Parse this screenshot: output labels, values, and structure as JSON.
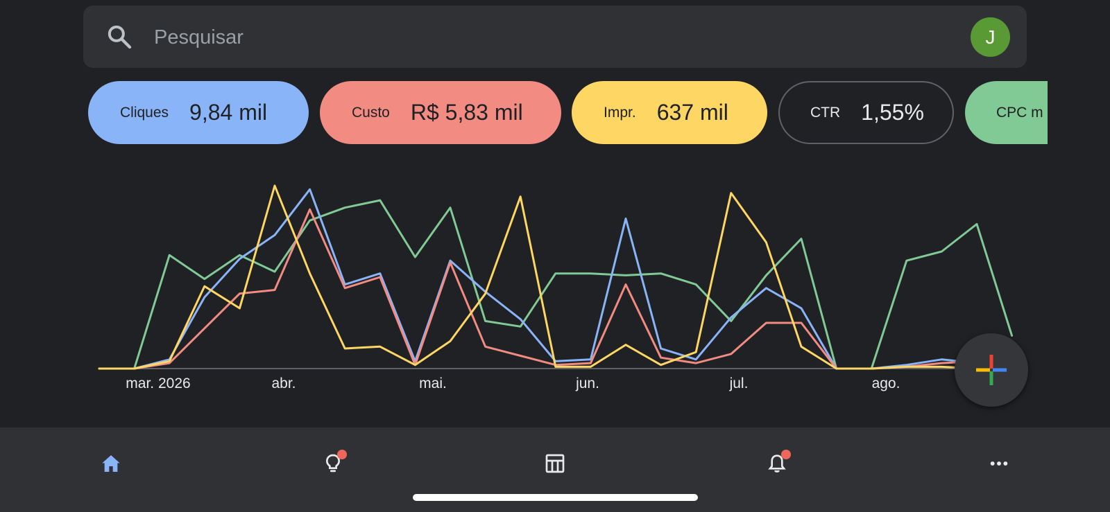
{
  "search": {
    "placeholder": "Pesquisar",
    "avatar_initial": "J",
    "avatar_color": "#5a9a35"
  },
  "metrics": [
    {
      "label": "Cliques",
      "value": "9,84 mil",
      "color": "#8ab4f8",
      "selected": true
    },
    {
      "label": "Custo",
      "value": "R$ 5,83 mil",
      "color": "#f28b82",
      "selected": true
    },
    {
      "label": "Impr.",
      "value": "637 mil",
      "color": "#fdd663",
      "selected": true
    },
    {
      "label": "CTR",
      "value": "1,55%",
      "color": "",
      "selected": false
    },
    {
      "label": "CPC m",
      "value": "",
      "color": "#81c995",
      "selected": true
    }
  ],
  "chart_data": {
    "type": "line",
    "x_tick_labels": [
      "mar. 2026",
      "abr.",
      "mai.",
      "jun.",
      "jul.",
      "ago."
    ],
    "grid": false,
    "legend": "none",
    "series": [
      {
        "color": "#81c995",
        "values": [
          0,
          0,
          62,
          49,
          62,
          53,
          81,
          88,
          92,
          61,
          88,
          26,
          23,
          52,
          52,
          51,
          52,
          46,
          26,
          51,
          71,
          0,
          0,
          59,
          64,
          79,
          18
        ]
      },
      {
        "color": "#8ab4f8",
        "values": [
          0,
          0,
          5,
          39,
          60,
          73,
          98,
          46,
          52,
          4,
          59,
          42,
          27,
          4,
          5,
          82,
          11,
          5,
          28,
          44,
          33,
          0,
          0,
          2,
          5,
          3,
          1
        ]
      },
      {
        "color": "#f28b82",
        "values": [
          0,
          0,
          3,
          22,
          41,
          43,
          87,
          44,
          50,
          2,
          58,
          12,
          7,
          2,
          3,
          46,
          6,
          3,
          8,
          25,
          25,
          0,
          0,
          1,
          3,
          4,
          0
        ]
      },
      {
        "color": "#fdd663",
        "values": [
          0,
          0,
          4,
          45,
          33,
          100,
          52,
          11,
          12,
          2,
          15,
          41,
          94,
          1,
          1,
          13,
          2,
          9,
          96,
          69,
          12,
          0,
          0,
          1,
          1,
          0,
          0
        ]
      }
    ]
  },
  "fab": {
    "icon": "plus-icon",
    "colors": [
      "#ea4335",
      "#4285f4",
      "#34a853",
      "#fbbc04"
    ]
  },
  "nav": {
    "items": [
      {
        "icon": "home-icon",
        "active": true,
        "badge": false
      },
      {
        "icon": "lightbulb-icon",
        "active": false,
        "badge": true
      },
      {
        "icon": "table-icon",
        "active": false,
        "badge": false
      },
      {
        "icon": "bell-icon",
        "active": false,
        "badge": true
      },
      {
        "icon": "more-icon",
        "active": false,
        "badge": false
      }
    ],
    "active_color": "#8ab4f8",
    "badge_color": "#ee675c"
  }
}
